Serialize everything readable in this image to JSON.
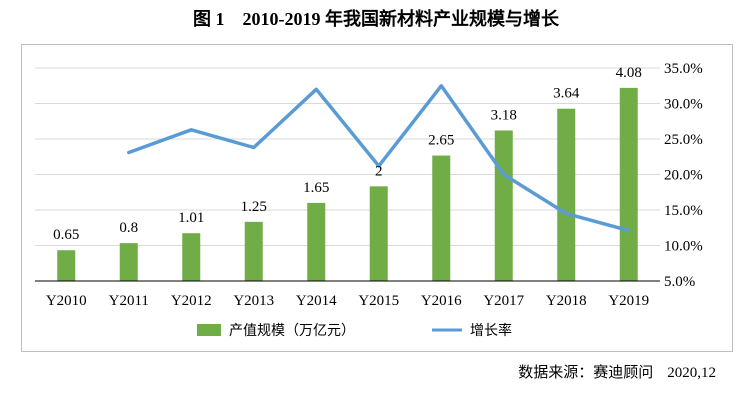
{
  "title": "图 1　2010-2019 年我国新材料产业规模与增长",
  "source": {
    "text": "数据来源：赛迪顾问",
    "date": "2020,12"
  },
  "colors": {
    "bar": "#70ad47",
    "line": "#5b9bd5",
    "grid": "#d9d9d9",
    "axis": "#000000"
  },
  "chart_data": {
    "type": "bar+line",
    "title": "2010-2019 年我国新材料产业规模与增长",
    "categories": [
      "Y2010",
      "Y2011",
      "Y2012",
      "Y2013",
      "Y2014",
      "Y2015",
      "Y2016",
      "Y2017",
      "Y2018",
      "Y2019"
    ],
    "series": [
      {
        "name": "产值规模（万亿元）",
        "type": "bar",
        "axis": "left",
        "values": [
          0.65,
          0.8,
          1.01,
          1.25,
          1.65,
          2,
          2.65,
          3.18,
          3.64,
          4.08
        ],
        "labels": [
          "0.65",
          "0.8",
          "1.01",
          "1.25",
          "1.65",
          "2",
          "2.65",
          "3.18",
          "3.64",
          "4.08"
        ]
      },
      {
        "name": "增长率",
        "type": "line",
        "axis": "right",
        "values": [
          null,
          23.1,
          26.3,
          23.8,
          32.0,
          21.2,
          32.5,
          20.0,
          14.5,
          12.1
        ]
      }
    ],
    "left_axis": {
      "ylim": [
        0,
        4.5
      ],
      "visible": false
    },
    "right_axis": {
      "ylim": [
        5.0,
        35.0
      ],
      "ticks": [
        "5.0%",
        "10.0%",
        "15.0%",
        "20.0%",
        "25.0%",
        "30.0%",
        "35.0%"
      ],
      "tick_values": [
        5,
        10,
        15,
        20,
        25,
        30,
        35
      ]
    },
    "grid": true,
    "legend": "bottom"
  }
}
